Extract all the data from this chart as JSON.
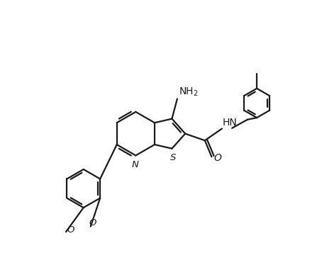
{
  "background_color": "#ffffff",
  "line_color": "#1a1a1a",
  "line_width": 1.6,
  "font_size": 9.5,
  "figsize": [
    4.54,
    3.81
  ],
  "dpi": 100,
  "xlim": [
    0,
    10
  ],
  "ylim": [
    0,
    10
  ]
}
